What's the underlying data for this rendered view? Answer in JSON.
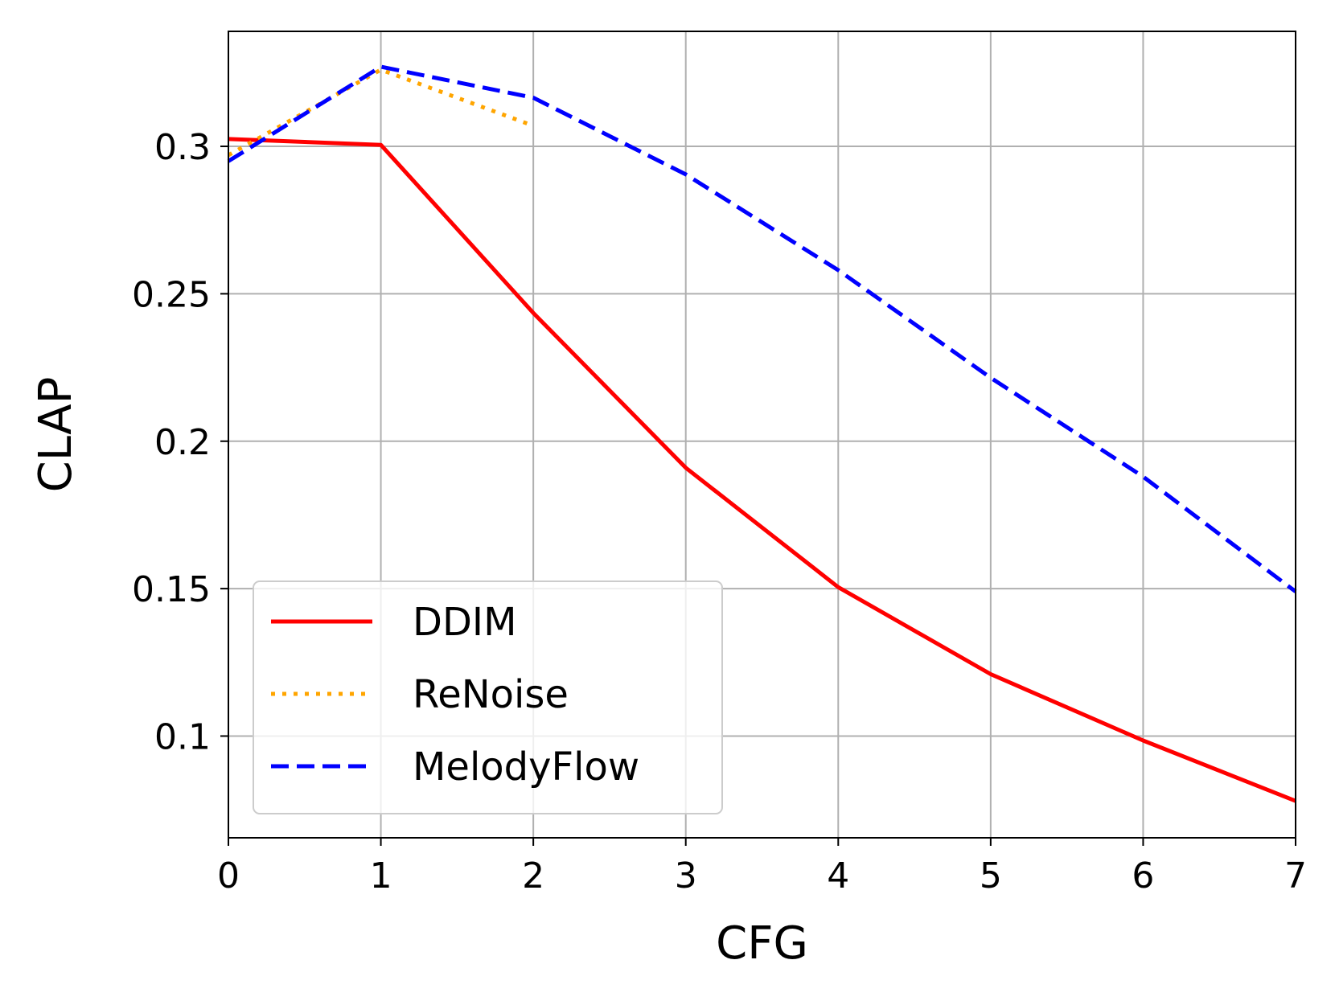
{
  "chart_data": {
    "type": "line",
    "title": "",
    "xlabel": "CFG",
    "ylabel": "CLAP",
    "xlim": [
      0,
      7
    ],
    "ylim": [
      0.0655,
      0.339
    ],
    "xticks": [
      0,
      1,
      2,
      3,
      4,
      5,
      6,
      7
    ],
    "yticks": [
      0.1,
      0.15,
      0.2,
      0.25,
      0.3
    ],
    "ytick_labels": [
      "0.1",
      "0.15",
      "0.2",
      "0.25",
      "0.3"
    ],
    "grid": true,
    "legend_position": "lower-left",
    "series": [
      {
        "name": "DDIM",
        "color": "#ff0000",
        "style": "solid",
        "x": [
          0,
          1,
          2,
          3,
          4,
          5,
          6,
          7
        ],
        "values": [
          0.3025,
          0.3005,
          0.2435,
          0.191,
          0.1505,
          0.121,
          0.0985,
          0.078
        ]
      },
      {
        "name": "ReNoise",
        "color": "#ffa500",
        "style": "dotted",
        "x": [
          0,
          1,
          2
        ],
        "values": [
          0.297,
          0.326,
          0.307
        ]
      },
      {
        "name": "MelodyFlow",
        "color": "#0000ff",
        "style": "dashed",
        "x": [
          0,
          1,
          2,
          3,
          4,
          5,
          6,
          7
        ],
        "values": [
          0.295,
          0.327,
          0.3165,
          0.2905,
          0.258,
          0.2215,
          0.188,
          0.149
        ]
      }
    ]
  }
}
